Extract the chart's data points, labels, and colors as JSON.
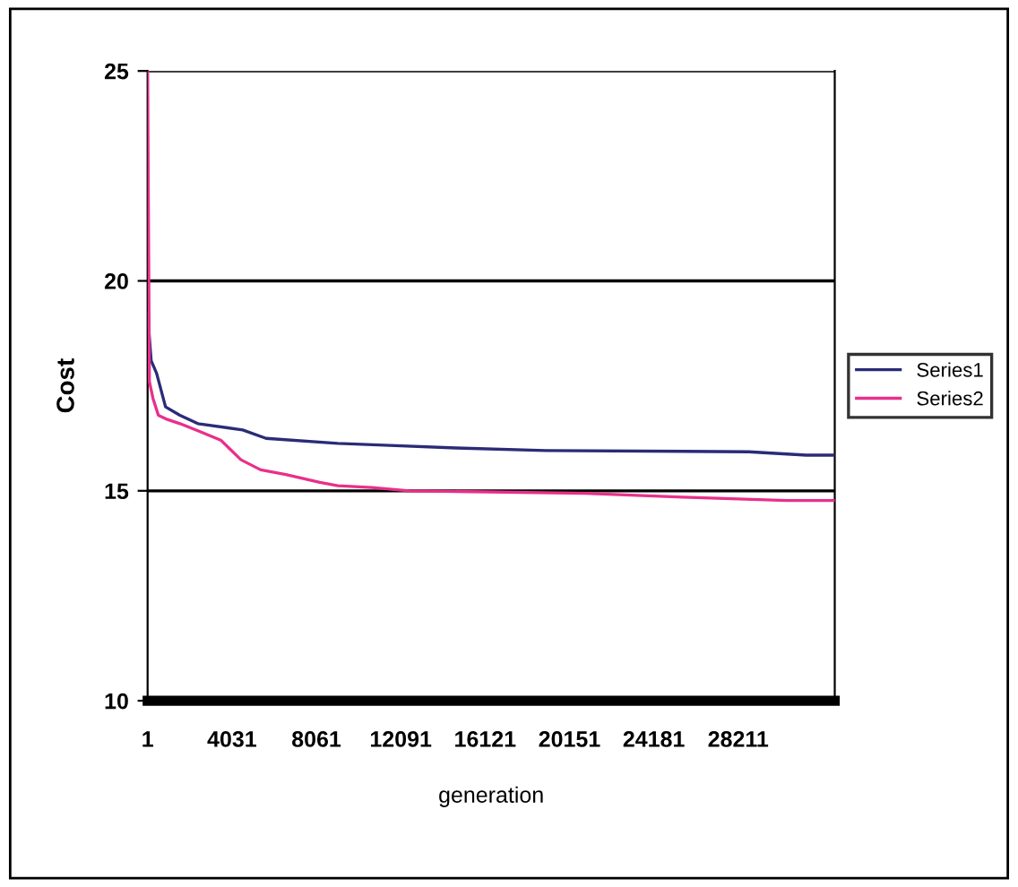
{
  "chart_data": {
    "type": "line",
    "xlabel": "generation",
    "ylabel": "Cost",
    "xlim": [
      1,
      32824
    ],
    "xticks": [
      1,
      4031,
      8061,
      12091,
      16121,
      20151,
      24181,
      28211
    ],
    "ylim": [
      10,
      25
    ],
    "yticks": [
      10,
      15,
      20,
      25
    ],
    "grid": "y",
    "legend": "right",
    "series": [
      {
        "name": "Series1",
        "color": "#2b2b78",
        "x": [
          1,
          172,
          430,
          858,
          1544,
          2401,
          4543,
          5657,
          9085,
          11571,
          14742,
          19027,
          28710,
          31453,
          32824
        ],
        "values": [
          19.2,
          18.1,
          17.8,
          17.0,
          16.8,
          16.6,
          16.45,
          16.25,
          16.13,
          16.08,
          16.02,
          15.96,
          15.93,
          15.85,
          15.85
        ]
      },
      {
        "name": "Series2",
        "color": "#e8308a",
        "x": [
          1,
          87,
          258,
          515,
          944,
          1544,
          2401,
          3515,
          4458,
          5400,
          6600,
          8228,
          9085,
          10714,
          12514,
          20912,
          25540,
          30510,
          32824
        ],
        "values": [
          25,
          17.6,
          17.2,
          16.8,
          16.7,
          16.6,
          16.43,
          16.2,
          15.74,
          15.5,
          15.39,
          15.2,
          15.12,
          15.08,
          15.0,
          14.94,
          14.85,
          14.77,
          14.77
        ]
      }
    ]
  }
}
